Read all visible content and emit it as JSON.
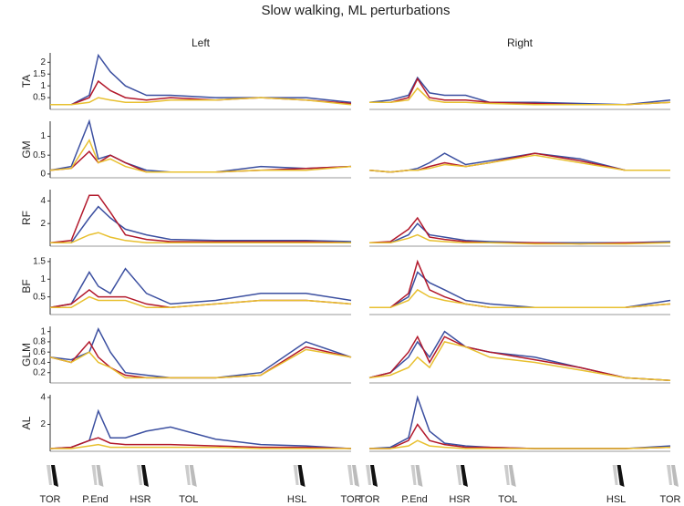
{
  "title": "Slow walking, ML perturbations",
  "columns": [
    "Left",
    "Right"
  ],
  "xlim": [
    0,
    100
  ],
  "xticks": [
    {
      "value": 0,
      "label": "TOR"
    },
    {
      "value": 15,
      "label": "P.End"
    },
    {
      "value": 30,
      "label": "HSR"
    },
    {
      "value": 46,
      "label": "TOL"
    },
    {
      "value": 82,
      "label": "HSL"
    },
    {
      "value": 100,
      "label": "TOR"
    }
  ],
  "x": [
    0,
    7,
    13,
    16,
    20,
    25,
    32,
    40,
    55,
    70,
    85,
    100
  ],
  "chart_data": [
    {
      "type": "line",
      "ylabel": "TA",
      "ylim": [
        0,
        2.4
      ],
      "yticks": [
        0.5,
        1,
        1.5,
        2
      ],
      "series": [
        {
          "color": "#3b4fa0",
          "values": [
            0.2,
            0.2,
            0.6,
            2.3,
            1.6,
            1.0,
            0.6,
            0.6,
            0.5,
            0.5,
            0.5,
            0.3
          ]
        },
        {
          "color": "#b2182b",
          "values": [
            0.2,
            0.2,
            0.5,
            1.2,
            0.8,
            0.5,
            0.4,
            0.5,
            0.4,
            0.5,
            0.4,
            0.25
          ]
        },
        {
          "color": "#e8c030",
          "values": [
            0.2,
            0.2,
            0.3,
            0.5,
            0.4,
            0.3,
            0.3,
            0.4,
            0.4,
            0.5,
            0.4,
            0.2
          ]
        }
      ]
    },
    {
      "type": "line",
      "ylabel": "GM",
      "ylim": [
        -0.1,
        1.4
      ],
      "yticks": [
        0,
        0.5,
        1
      ],
      "series": [
        {
          "color": "#3b4fa0",
          "values": [
            0.1,
            0.2,
            1.4,
            0.4,
            0.5,
            0.3,
            0.1,
            0.05,
            0.05,
            0.2,
            0.15,
            0.2
          ]
        },
        {
          "color": "#b2182b",
          "values": [
            0.1,
            0.15,
            0.6,
            0.3,
            0.5,
            0.3,
            0.05,
            0.05,
            0.05,
            0.1,
            0.15,
            0.2
          ]
        },
        {
          "color": "#e8c030",
          "values": [
            0.1,
            0.15,
            0.9,
            0.3,
            0.4,
            0.2,
            0.05,
            0.05,
            0.05,
            0.1,
            0.1,
            0.2
          ]
        }
      ]
    },
    {
      "type": "line",
      "ylabel": "RF",
      "ylim": [
        0,
        5
      ],
      "yticks": [
        2,
        4
      ],
      "series": [
        {
          "color": "#3b4fa0",
          "values": [
            0.3,
            0.3,
            2.5,
            3.5,
            2.5,
            1.5,
            1.0,
            0.6,
            0.5,
            0.5,
            0.5,
            0.4
          ]
        },
        {
          "color": "#b2182b",
          "values": [
            0.3,
            0.5,
            4.5,
            4.5,
            3.0,
            1.0,
            0.6,
            0.4,
            0.4,
            0.4,
            0.4,
            0.3
          ]
        },
        {
          "color": "#e8c030",
          "values": [
            0.3,
            0.3,
            1.0,
            1.2,
            0.8,
            0.5,
            0.3,
            0.3,
            0.3,
            0.3,
            0.3,
            0.3
          ]
        }
      ]
    },
    {
      "type": "line",
      "ylabel": "BF",
      "ylim": [
        0,
        1.6
      ],
      "yticks": [
        0.5,
        1,
        1.5
      ],
      "series": [
        {
          "color": "#3b4fa0",
          "values": [
            0.2,
            0.3,
            1.2,
            0.8,
            0.6,
            1.3,
            0.6,
            0.3,
            0.4,
            0.6,
            0.6,
            0.4
          ]
        },
        {
          "color": "#b2182b",
          "values": [
            0.2,
            0.3,
            0.7,
            0.5,
            0.5,
            0.5,
            0.3,
            0.2,
            0.3,
            0.4,
            0.4,
            0.3
          ]
        },
        {
          "color": "#e8c030",
          "values": [
            0.2,
            0.2,
            0.5,
            0.4,
            0.4,
            0.4,
            0.2,
            0.2,
            0.3,
            0.4,
            0.4,
            0.3
          ]
        }
      ]
    },
    {
      "type": "line",
      "ylabel": "GLM",
      "ylim": [
        0,
        1.1
      ],
      "yticks": [
        0.2,
        0.4,
        0.6,
        0.8,
        1
      ],
      "series": [
        {
          "color": "#3b4fa0",
          "values": [
            0.5,
            0.45,
            0.6,
            1.05,
            0.6,
            0.2,
            0.15,
            0.1,
            0.1,
            0.2,
            0.8,
            0.5
          ]
        },
        {
          "color": "#b2182b",
          "values": [
            0.5,
            0.4,
            0.8,
            0.5,
            0.3,
            0.15,
            0.1,
            0.1,
            0.1,
            0.15,
            0.7,
            0.5
          ]
        },
        {
          "color": "#e8c030",
          "values": [
            0.5,
            0.4,
            0.6,
            0.4,
            0.3,
            0.1,
            0.1,
            0.1,
            0.1,
            0.15,
            0.65,
            0.5
          ]
        }
      ]
    },
    {
      "type": "line",
      "ylabel": "AL",
      "ylim": [
        0,
        4.2
      ],
      "yticks": [
        2,
        4
      ],
      "series": [
        {
          "color": "#3b4fa0",
          "values": [
            0.2,
            0.3,
            0.8,
            3.0,
            1.0,
            1.0,
            1.5,
            1.8,
            0.9,
            0.5,
            0.4,
            0.2
          ]
        },
        {
          "color": "#b2182b",
          "values": [
            0.2,
            0.3,
            0.8,
            1.0,
            0.6,
            0.5,
            0.5,
            0.5,
            0.4,
            0.3,
            0.3,
            0.2
          ]
        },
        {
          "color": "#e8c030",
          "values": [
            0.2,
            0.2,
            0.4,
            0.5,
            0.3,
            0.3,
            0.3,
            0.3,
            0.3,
            0.2,
            0.2,
            0.2
          ]
        }
      ]
    },
    {
      "type": "line",
      "ylim": [
        0,
        2.4
      ],
      "series": [
        {
          "color": "#3b4fa0",
          "values": [
            0.3,
            0.4,
            0.6,
            1.35,
            0.7,
            0.6,
            0.6,
            0.3,
            0.3,
            0.25,
            0.2,
            0.4
          ]
        },
        {
          "color": "#b2182b",
          "values": [
            0.3,
            0.3,
            0.5,
            1.3,
            0.5,
            0.4,
            0.4,
            0.3,
            0.25,
            0.2,
            0.2,
            0.3
          ]
        },
        {
          "color": "#e8c030",
          "values": [
            0.3,
            0.3,
            0.4,
            0.9,
            0.4,
            0.3,
            0.3,
            0.25,
            0.2,
            0.2,
            0.2,
            0.3
          ]
        }
      ]
    },
    {
      "type": "line",
      "ylim": [
        -0.1,
        1.4
      ],
      "series": [
        {
          "color": "#3b4fa0",
          "values": [
            0.1,
            0.05,
            0.1,
            0.15,
            0.3,
            0.55,
            0.25,
            0.35,
            0.55,
            0.4,
            0.1,
            0.1
          ]
        },
        {
          "color": "#b2182b",
          "values": [
            0.1,
            0.05,
            0.1,
            0.1,
            0.2,
            0.3,
            0.2,
            0.3,
            0.55,
            0.35,
            0.1,
            0.1
          ]
        },
        {
          "color": "#e8c030",
          "values": [
            0.1,
            0.05,
            0.1,
            0.1,
            0.15,
            0.25,
            0.2,
            0.3,
            0.5,
            0.3,
            0.1,
            0.1
          ]
        }
      ]
    },
    {
      "type": "line",
      "ylim": [
        0,
        5
      ],
      "series": [
        {
          "color": "#3b4fa0",
          "values": [
            0.3,
            0.3,
            1.0,
            2.0,
            1.0,
            0.8,
            0.5,
            0.4,
            0.3,
            0.3,
            0.3,
            0.4
          ]
        },
        {
          "color": "#b2182b",
          "values": [
            0.3,
            0.4,
            1.5,
            2.5,
            0.8,
            0.6,
            0.4,
            0.3,
            0.3,
            0.2,
            0.3,
            0.3
          ]
        },
        {
          "color": "#e8c030",
          "values": [
            0.3,
            0.3,
            0.7,
            1.0,
            0.5,
            0.4,
            0.3,
            0.3,
            0.2,
            0.2,
            0.2,
            0.3
          ]
        }
      ]
    },
    {
      "type": "line",
      "ylim": [
        0,
        1.6
      ],
      "series": [
        {
          "color": "#3b4fa0",
          "values": [
            0.2,
            0.2,
            0.5,
            1.2,
            0.9,
            0.7,
            0.4,
            0.3,
            0.2,
            0.2,
            0.2,
            0.4
          ]
        },
        {
          "color": "#b2182b",
          "values": [
            0.2,
            0.2,
            0.6,
            1.5,
            0.7,
            0.5,
            0.3,
            0.2,
            0.2,
            0.2,
            0.2,
            0.3
          ]
        },
        {
          "color": "#e8c030",
          "values": [
            0.2,
            0.2,
            0.4,
            0.7,
            0.5,
            0.4,
            0.3,
            0.2,
            0.2,
            0.2,
            0.2,
            0.3
          ]
        }
      ]
    },
    {
      "type": "line",
      "ylim": [
        0,
        1.1
      ],
      "series": [
        {
          "color": "#3b4fa0",
          "values": [
            0.1,
            0.2,
            0.5,
            0.8,
            0.5,
            1.0,
            0.7,
            0.6,
            0.5,
            0.3,
            0.1,
            0.05
          ]
        },
        {
          "color": "#b2182b",
          "values": [
            0.1,
            0.2,
            0.6,
            0.9,
            0.4,
            0.9,
            0.7,
            0.6,
            0.45,
            0.3,
            0.1,
            0.05
          ]
        },
        {
          "color": "#e8c030",
          "values": [
            0.1,
            0.15,
            0.3,
            0.5,
            0.3,
            0.8,
            0.7,
            0.5,
            0.4,
            0.25,
            0.1,
            0.05
          ]
        }
      ]
    },
    {
      "type": "line",
      "ylim": [
        0,
        4.2
      ],
      "series": [
        {
          "color": "#3b4fa0",
          "values": [
            0.2,
            0.3,
            1.0,
            4.0,
            1.5,
            0.6,
            0.4,
            0.3,
            0.2,
            0.2,
            0.2,
            0.4
          ]
        },
        {
          "color": "#b2182b",
          "values": [
            0.2,
            0.2,
            0.8,
            2.0,
            0.8,
            0.5,
            0.3,
            0.3,
            0.2,
            0.2,
            0.2,
            0.3
          ]
        },
        {
          "color": "#e8c030",
          "values": [
            0.2,
            0.2,
            0.4,
            0.8,
            0.4,
            0.3,
            0.2,
            0.2,
            0.2,
            0.2,
            0.2,
            0.3
          ]
        }
      ]
    }
  ]
}
